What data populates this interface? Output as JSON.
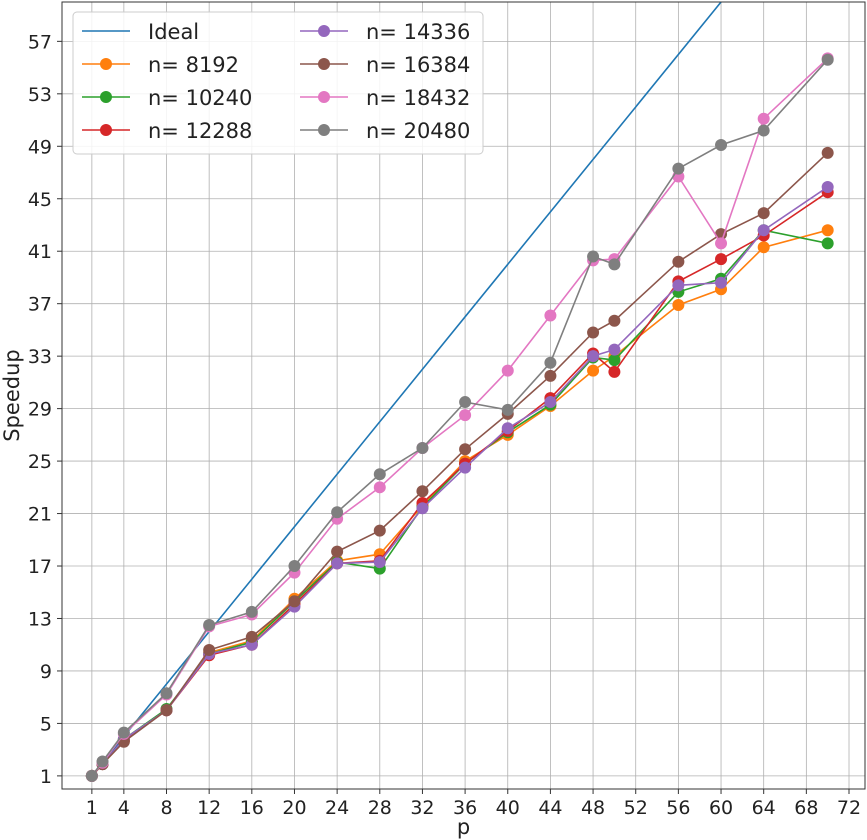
{
  "chart_data": {
    "type": "line",
    "title": "",
    "xlabel": "p",
    "ylabel": "Speedup",
    "xlim": [
      -1.8,
      73.5
    ],
    "ylim": [
      0,
      60
    ],
    "xticks": [
      1,
      4,
      8,
      12,
      16,
      20,
      24,
      28,
      32,
      36,
      40,
      44,
      48,
      52,
      56,
      60,
      64,
      68,
      72
    ],
    "yticks": [
      1,
      5,
      9,
      13,
      17,
      21,
      25,
      29,
      33,
      37,
      41,
      45,
      49,
      53,
      57
    ],
    "grid": true,
    "legend_position": "upper-left",
    "ideal": {
      "name": "Ideal",
      "color": "#1f77b4",
      "x": [
        1,
        72
      ],
      "y": [
        1,
        72
      ]
    },
    "series": [
      {
        "name": "n= 8192",
        "color": "#ff7f0e",
        "x": [
          1,
          2,
          4,
          8,
          12,
          16,
          20,
          24,
          28,
          32,
          36,
          40,
          44,
          48,
          50,
          56,
          60,
          64,
          70
        ],
        "y": [
          1.0,
          1.9,
          3.7,
          6.0,
          10.4,
          11.3,
          14.5,
          17.4,
          17.9,
          21.6,
          25.0,
          27.0,
          29.2,
          31.9,
          33.0,
          36.9,
          38.1,
          41.3,
          42.6
        ]
      },
      {
        "name": "n= 10240",
        "color": "#2ca02c",
        "x": [
          1,
          2,
          4,
          8,
          12,
          16,
          20,
          24,
          28,
          32,
          36,
          40,
          44,
          48,
          50,
          56,
          60,
          64,
          70
        ],
        "y": [
          1.0,
          1.9,
          3.8,
          6.1,
          10.3,
          11.2,
          14.3,
          17.3,
          16.8,
          21.5,
          24.8,
          27.2,
          29.3,
          32.9,
          32.7,
          37.9,
          38.9,
          42.6,
          41.6
        ]
      },
      {
        "name": "n= 12288",
        "color": "#d62728",
        "x": [
          1,
          2,
          4,
          8,
          12,
          16,
          20,
          24,
          28,
          32,
          36,
          40,
          44,
          48,
          50,
          56,
          60,
          64,
          70
        ],
        "y": [
          1.0,
          1.9,
          3.7,
          6.0,
          10.2,
          11.0,
          14.1,
          17.2,
          17.4,
          21.8,
          24.8,
          27.3,
          29.8,
          33.2,
          31.8,
          38.7,
          40.4,
          42.2,
          45.5
        ]
      },
      {
        "name": "n= 14336",
        "color": "#9467bd",
        "x": [
          1,
          2,
          4,
          8,
          12,
          16,
          20,
          24,
          28,
          32,
          36,
          40,
          44,
          48,
          50,
          56,
          60,
          64,
          70
        ],
        "y": [
          1.0,
          1.9,
          3.8,
          6.0,
          10.3,
          11.0,
          13.9,
          17.2,
          17.3,
          21.4,
          24.5,
          27.5,
          29.5,
          33.0,
          33.5,
          38.4,
          38.6,
          42.6,
          45.9
        ]
      },
      {
        "name": "n= 16384",
        "color": "#8c564b",
        "x": [
          1,
          2,
          4,
          8,
          12,
          16,
          20,
          24,
          28,
          32,
          36,
          40,
          44,
          48,
          50,
          56,
          60,
          64,
          70
        ],
        "y": [
          1.0,
          1.9,
          3.6,
          6.0,
          10.6,
          11.6,
          14.3,
          18.1,
          19.7,
          22.7,
          25.9,
          28.6,
          31.5,
          34.8,
          35.7,
          40.2,
          42.3,
          43.9,
          48.5
        ]
      },
      {
        "name": "n= 18432",
        "color": "#e377c2",
        "x": [
          1,
          2,
          4,
          8,
          12,
          16,
          20,
          24,
          28,
          32,
          36,
          40,
          44,
          48,
          50,
          56,
          60,
          64,
          70
        ],
        "y": [
          1.0,
          2.0,
          4.2,
          7.2,
          12.4,
          13.3,
          16.5,
          20.6,
          23.0,
          26.0,
          28.5,
          31.9,
          36.1,
          40.3,
          40.4,
          46.7,
          41.6,
          51.1,
          55.7
        ]
      },
      {
        "name": "n= 20480",
        "color": "#7f7f7f",
        "x": [
          1,
          2,
          4,
          8,
          12,
          16,
          20,
          24,
          28,
          32,
          36,
          40,
          44,
          48,
          50,
          56,
          60,
          64,
          70
        ],
        "y": [
          1.0,
          2.1,
          4.3,
          7.3,
          12.5,
          13.5,
          17.0,
          21.1,
          24.0,
          26.0,
          29.5,
          28.9,
          32.5,
          40.6,
          40.0,
          47.3,
          49.1,
          50.2,
          55.6
        ]
      }
    ]
  }
}
